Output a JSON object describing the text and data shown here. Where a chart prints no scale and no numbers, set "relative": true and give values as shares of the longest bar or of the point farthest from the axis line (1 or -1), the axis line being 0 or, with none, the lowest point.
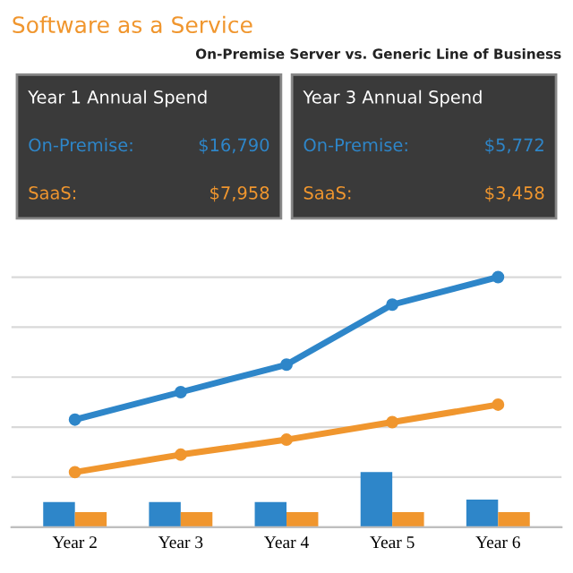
{
  "chart_data": [
    {
      "type": "other",
      "title": "Software as a Service",
      "subtitle": "On-Premise Server vs. Generic Line of Business",
      "annotations": [
        "Year 1 Annual Spend",
        "On-Premise:",
        "$16,790",
        "SaaS:",
        "$7,958",
        "Year 3 Annual Spend",
        "On-Premise:",
        "$5,772",
        "SaaS:",
        "$3,458"
      ],
      "colors": [
        "#3a3a3a",
        "#2e86c9",
        "#f0962e"
      ]
    },
    {
      "type": "bar",
      "relative": true,
      "grid": "y",
      "marker": "circle",
      "categories": [
        "Year 2",
        "Year 3",
        "Year 4",
        "Year 5",
        "Year 6"
      ],
      "series": [
        {
          "type": "line",
          "color": "#2e86c9",
          "values": [
            0.43,
            0.54,
            0.65,
            0.89,
            1.0
          ]
        },
        {
          "type": "line",
          "color": "#f0962e",
          "values": [
            0.22,
            0.29,
            0.35,
            0.42,
            0.49
          ]
        },
        {
          "type": "bar",
          "color": "#2e86c9",
          "values": [
            0.1,
            0.1,
            0.1,
            0.22,
            0.11
          ]
        },
        {
          "type": "bar",
          "color": "#f0962e",
          "values": [
            0.06,
            0.06,
            0.06,
            0.06,
            0.06
          ]
        }
      ]
    }
  ]
}
